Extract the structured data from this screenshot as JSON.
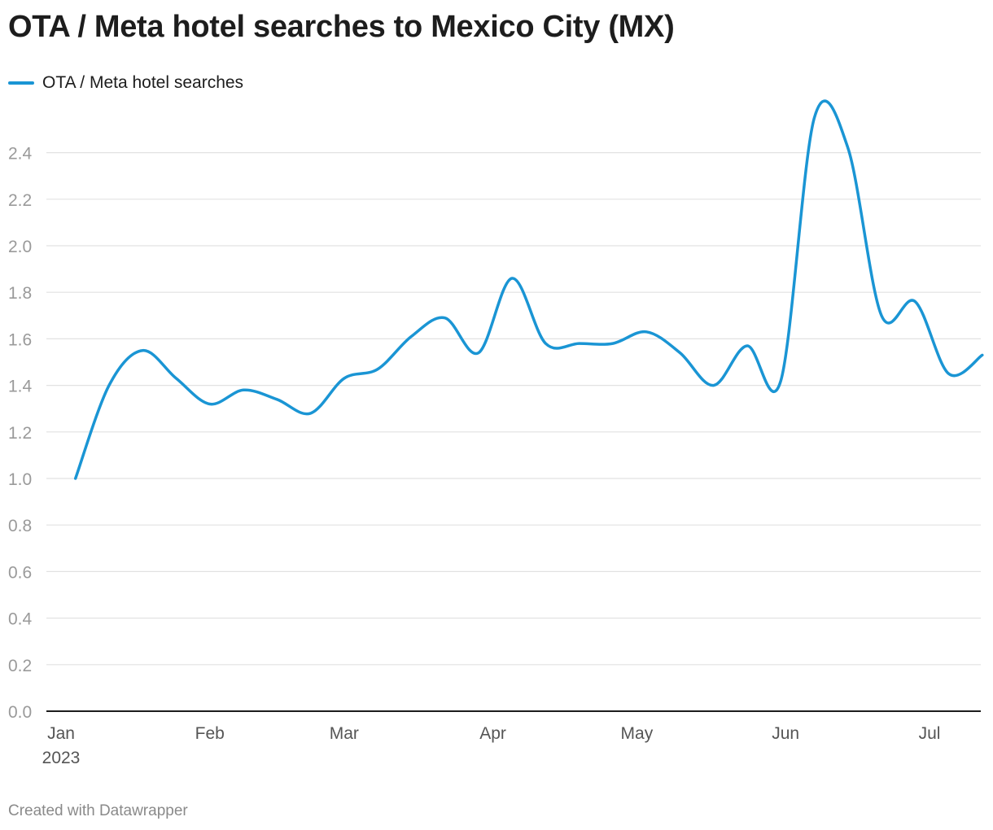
{
  "title": "OTA / Meta hotel searches to Mexico City (MX)",
  "credit": "Created with Datawrapper",
  "colors": {
    "series": "#1a95d4",
    "grid": "#e2e2e2",
    "axis": "#1d1d1d",
    "tick_text": "#9a9a9a",
    "month_text": "#555555"
  },
  "chart_data": {
    "type": "line",
    "title": "OTA / Meta hotel searches to Mexico City (MX)",
    "xlabel": "",
    "ylabel": "",
    "ylim": [
      0,
      2.6
    ],
    "y_ticks": [
      0.0,
      0.2,
      0.4,
      0.6,
      0.8,
      1.0,
      1.2,
      1.4,
      1.6,
      1.8,
      2.0,
      2.2,
      2.4
    ],
    "y_tick_labels": [
      "0.0",
      "0.2",
      "0.4",
      "0.6",
      "0.8",
      "1.0",
      "1.2",
      "1.4",
      "1.6",
      "1.8",
      "2.0",
      "2.2",
      "2.4"
    ],
    "xlim": [
      "2023-01-01",
      "2023-07-16"
    ],
    "x_ticks": [
      "2023-01-01",
      "2023-02-01",
      "2023-03-01",
      "2023-04-01",
      "2023-05-01",
      "2023-06-01",
      "2023-07-01"
    ],
    "x_tick_labels": [
      "Jan",
      "Feb",
      "Mar",
      "Apr",
      "May",
      "Jun",
      "Jul"
    ],
    "x_year_label": "2023",
    "grid": true,
    "legend_position": "top-left",
    "series": [
      {
        "name": "OTA / Meta hotel searches",
        "color": "#1a95d4",
        "x": [
          "2023-01-04",
          "2023-01-11",
          "2023-01-18",
          "2023-01-25",
          "2023-02-01",
          "2023-02-08",
          "2023-02-15",
          "2023-02-22",
          "2023-03-01",
          "2023-03-08",
          "2023-03-15",
          "2023-03-22",
          "2023-03-29",
          "2023-04-05",
          "2023-04-12",
          "2023-04-19",
          "2023-04-26",
          "2023-05-03",
          "2023-05-10",
          "2023-05-17",
          "2023-05-24",
          "2023-05-31",
          "2023-06-07",
          "2023-06-14",
          "2023-06-21",
          "2023-06-28",
          "2023-07-05",
          "2023-07-12"
        ],
        "values": [
          1.0,
          1.4,
          1.55,
          1.43,
          1.32,
          1.38,
          1.34,
          1.28,
          1.43,
          1.47,
          1.61,
          1.69,
          1.54,
          1.86,
          1.58,
          1.58,
          1.58,
          1.63,
          1.54,
          1.4,
          1.57,
          1.42,
          2.55,
          2.42,
          1.7,
          1.76,
          1.45,
          1.53
        ]
      }
    ]
  }
}
